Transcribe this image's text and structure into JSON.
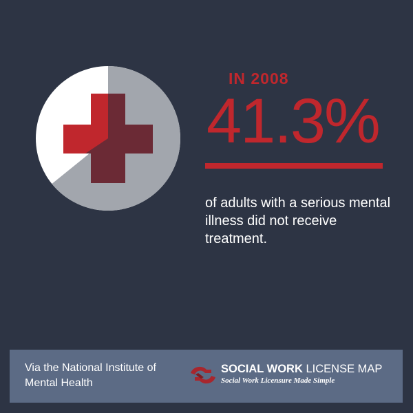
{
  "hero": {
    "icon": "medical-cross-icon",
    "year_label": "IN 2008",
    "statistic": "41.3%",
    "description": "of adults with a serious mental illness did not receive treatment."
  },
  "footer": {
    "source": "Via the National Institute of Mental Health",
    "logo": {
      "icon": "linked-hands-logo-icon",
      "brand_bold": "SOCIAL WORK",
      "brand_regular": "LICENSE MAP",
      "tagline": "Social Work Licensure Made Simple"
    }
  },
  "colors": {
    "background": "#2d3444",
    "accent_red": "#c0272d",
    "footer_band": "#5c6b85",
    "text": "#ffffff"
  }
}
